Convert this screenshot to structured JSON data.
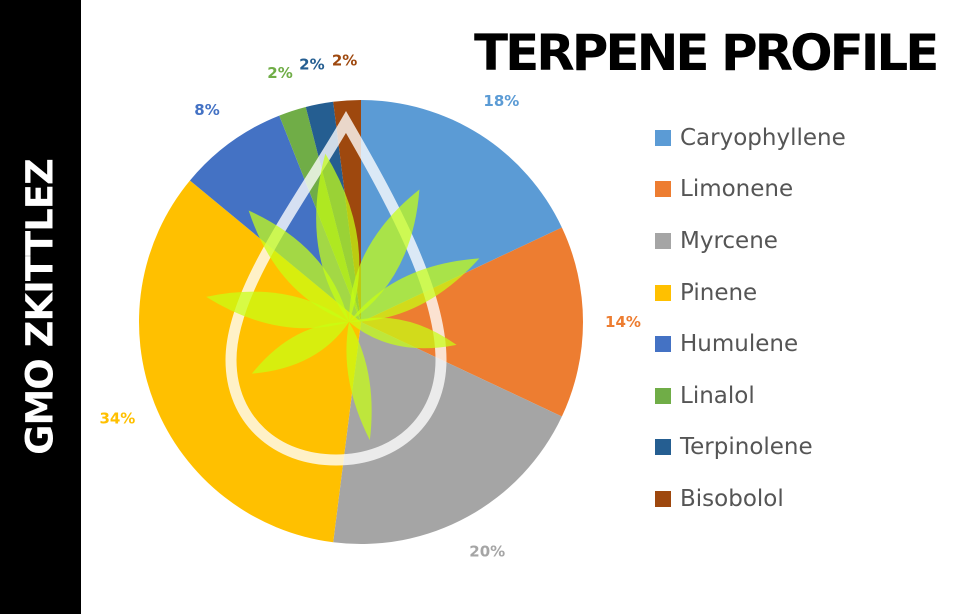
{
  "side_title": "GMO ZKITTLEZ",
  "chart_data": {
    "type": "pie",
    "title": "TERPENE PROFILE",
    "start_angle_deg": 0,
    "direction": "clockwise",
    "slices": [
      {
        "label": "Caryophyllene",
        "value": 18,
        "value_label": "18%",
        "color": "#5B9BD5"
      },
      {
        "label": "Limonene",
        "value": 14,
        "value_label": "14%",
        "color": "#ED7D31"
      },
      {
        "label": "Myrcene",
        "value": 20,
        "value_label": "20%",
        "color": "#A5A5A5"
      },
      {
        "label": "Pinene",
        "value": 34,
        "value_label": "34%",
        "color": "#FFC000"
      },
      {
        "label": "Humulene",
        "value": 8,
        "value_label": "8%",
        "color": "#4472C4"
      },
      {
        "label": "Linalol",
        "value": 2,
        "value_label": "2%",
        "color": "#70AD47"
      },
      {
        "label": "Terpinolene",
        "value": 2,
        "value_label": "2%",
        "color": "#255E91"
      },
      {
        "label": "Bisobolol",
        "value": 2,
        "value_label": "2%",
        "color": "#9E480E"
      }
    ],
    "legend_position": "right",
    "overlay_graphic": "cannabis-leaf-and-drop-icon"
  }
}
